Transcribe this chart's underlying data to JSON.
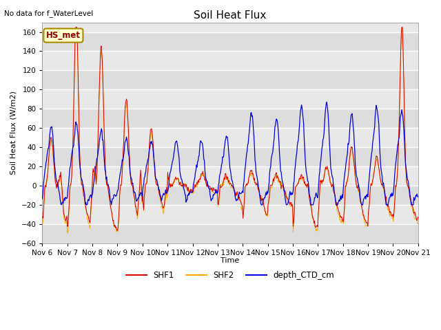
{
  "title": "Soil Heat Flux",
  "subtitle": "No data for f_WaterLevel",
  "ylabel": "Soil Heat Flux (W/m2)",
  "xlabel": "Time",
  "watermark": "HS_met",
  "ylim": [
    -60,
    170
  ],
  "yticks": [
    -60,
    -40,
    -20,
    0,
    20,
    40,
    60,
    80,
    100,
    120,
    140,
    160
  ],
  "bg_color": "#ffffff",
  "plot_bg_color": "#e8e8e8",
  "line_colors": {
    "SHF1": "#dd0000",
    "SHF2": "#ffaa00",
    "depth_CTD_cm": "#0000dd"
  },
  "n_points": 720,
  "seed": 7
}
